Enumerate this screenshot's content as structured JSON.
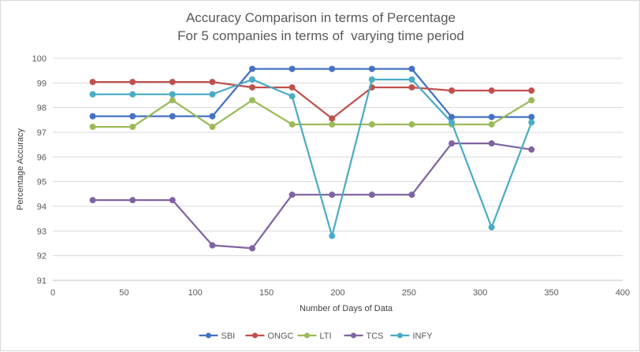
{
  "chart_data": {
    "type": "line",
    "title_lines": [
      "Accuracy Comparison in terms of Percentage",
      "For 5 companies in terms of  varying time period"
    ],
    "xlabel": "Number  of Days of Data",
    "ylabel": "Percentage Accuracy",
    "xlim": [
      0,
      400
    ],
    "ylim": [
      91,
      100
    ],
    "xticks": [
      0,
      50,
      100,
      150,
      200,
      250,
      300,
      350,
      400
    ],
    "yticks": [
      91,
      92,
      93,
      94,
      95,
      96,
      97,
      98,
      99,
      100
    ],
    "grid": "horizontal",
    "legend_position": "bottom",
    "x": [
      28,
      56,
      84,
      112,
      140,
      168,
      196,
      224,
      252,
      280,
      308,
      336
    ],
    "series": [
      {
        "name": "SBI",
        "color": "#4472c4",
        "values": [
          97.65,
          97.65,
          97.65,
          97.65,
          99.57,
          99.57,
          99.57,
          99.57,
          99.57,
          97.62,
          97.62,
          97.62
        ]
      },
      {
        "name": "ONGC",
        "color": "#c0504d",
        "values": [
          99.04,
          99.04,
          99.04,
          99.04,
          98.82,
          98.82,
          97.56,
          98.82,
          98.82,
          98.69,
          98.69,
          98.69
        ]
      },
      {
        "name": "LTI",
        "color": "#9bbb59",
        "values": [
          97.22,
          97.22,
          98.3,
          97.22,
          98.3,
          97.32,
          97.32,
          97.32,
          97.32,
          97.32,
          97.32,
          98.3
        ]
      },
      {
        "name": "TCS",
        "color": "#8064a2",
        "values": [
          94.25,
          94.25,
          94.25,
          92.42,
          92.3,
          94.47,
          94.47,
          94.47,
          94.47,
          96.55,
          96.55,
          96.3
        ]
      },
      {
        "name": "INFY",
        "color": "#4bacc6",
        "values": [
          98.54,
          98.54,
          98.54,
          98.54,
          99.14,
          98.46,
          92.8,
          99.14,
          99.14,
          97.4,
          93.15,
          97.4
        ]
      }
    ]
  }
}
